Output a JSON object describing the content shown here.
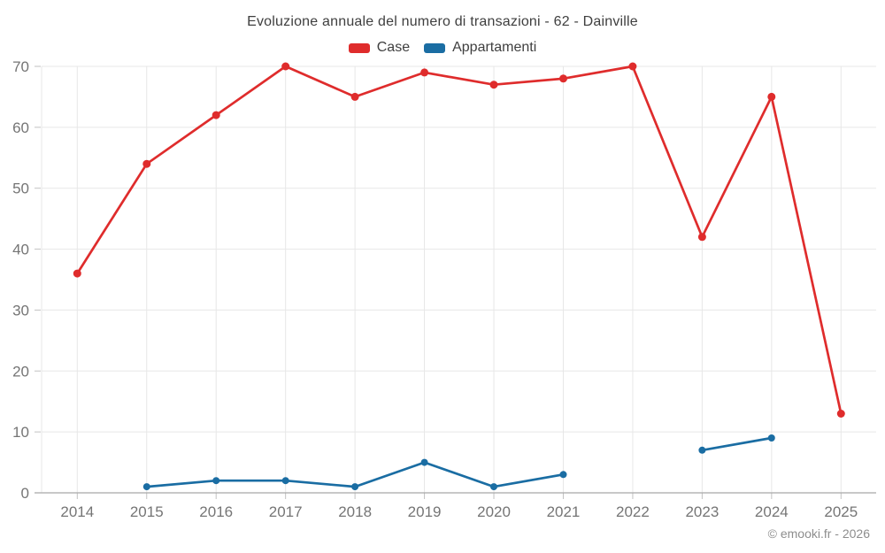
{
  "chart_data": {
    "type": "line",
    "title": "Evoluzione annuale del numero di transazioni - 62 - Dainville",
    "x": [
      "2014",
      "2015",
      "2016",
      "2017",
      "2018",
      "2019",
      "2020",
      "2021",
      "2022",
      "2023",
      "2024",
      "2025"
    ],
    "series": [
      {
        "name": "Case",
        "color": "#df2c2c",
        "values": [
          36,
          54,
          62,
          70,
          65,
          69,
          67,
          68,
          70,
          42,
          65,
          13
        ]
      },
      {
        "name": "Appartamenti",
        "color": "#1a6da3",
        "values": [
          null,
          1,
          2,
          2,
          1,
          5,
          1,
          3,
          null,
          7,
          9,
          null
        ]
      }
    ],
    "xlabel": "",
    "ylabel": "",
    "ylim": [
      0,
      70
    ],
    "y_ticks": [
      0,
      10,
      20,
      30,
      40,
      50,
      60,
      70
    ],
    "grid": true,
    "legend_position": "top",
    "grid_color": "#e7e7e7",
    "axis_color": "#a8a8a8",
    "tick_color": "#c2c2c2",
    "tick_label_color": "#757575"
  },
  "footer": {
    "text": "© emooki.fr - 2026"
  }
}
